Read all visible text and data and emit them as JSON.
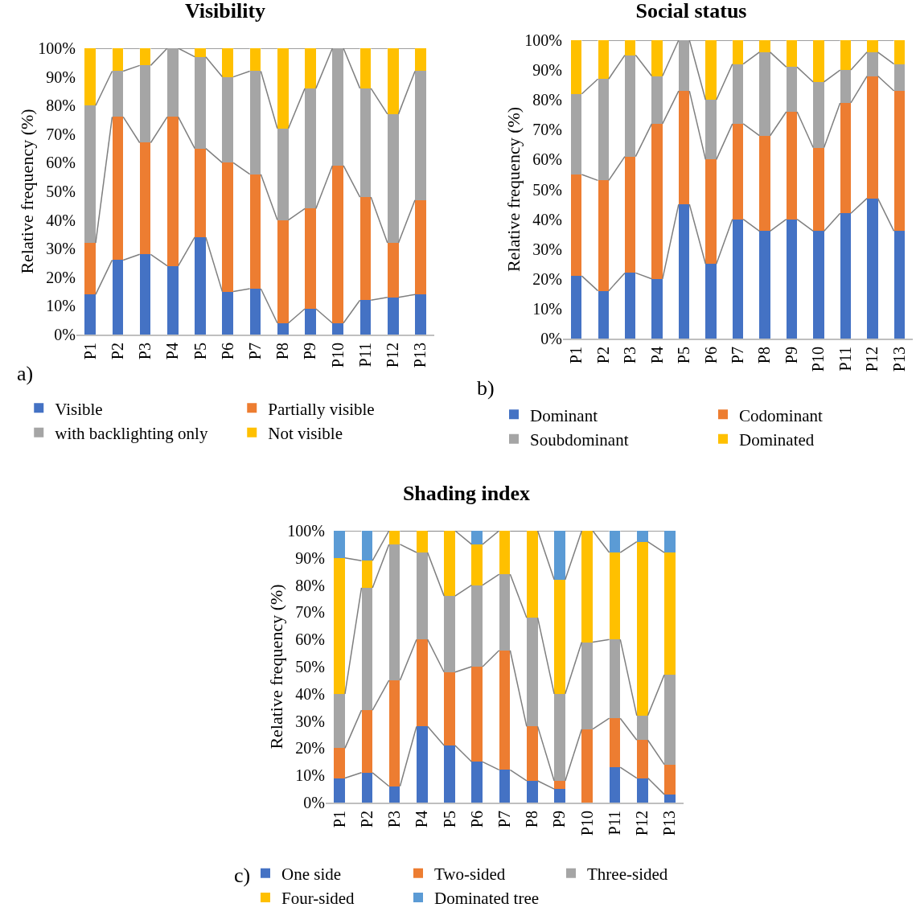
{
  "chart_data": [
    {
      "type": "bar",
      "title": "Visibility",
      "ylabel": "Relative frequency (%)",
      "categories": [
        "P1",
        "P2",
        "P3",
        "P4",
        "P5",
        "P6",
        "P7",
        "P8",
        "P9",
        "P10",
        "P11",
        "P12",
        "P13"
      ],
      "stacked": true,
      "ylim": [
        0,
        100
      ],
      "yticks": [
        {
          "value": 0,
          "label": "0%"
        },
        {
          "value": 10,
          "label": "10%"
        },
        {
          "value": 20,
          "label": "20%"
        },
        {
          "value": 30,
          "label": "30%"
        },
        {
          "value": 40,
          "label": "40%"
        },
        {
          "value": 50,
          "label": "50%"
        },
        {
          "value": 60,
          "label": "60%"
        },
        {
          "value": 70,
          "label": "70%"
        },
        {
          "value": 80,
          "label": "80%"
        },
        {
          "value": 90,
          "label": "90%"
        },
        {
          "value": 100,
          "label": "100%"
        }
      ],
      "grid": false,
      "legend": "bottom",
      "annotations": [
        "a)"
      ],
      "series": [
        {
          "name": "Visible",
          "color": "#4472c4",
          "values": [
            14,
            26,
            28,
            24,
            34,
            15,
            16,
            4,
            9,
            4,
            12,
            13,
            14
          ]
        },
        {
          "name": "Partially visible",
          "color": "#ed7d31",
          "values": [
            18,
            50,
            39,
            52,
            31,
            45,
            40,
            36,
            35,
            55,
            36,
            19,
            33
          ]
        },
        {
          "name": "with backlighting only",
          "color": "#a5a5a5",
          "values": [
            48,
            16,
            27,
            24,
            32,
            30,
            36,
            32,
            42,
            41,
            38,
            45,
            45
          ]
        },
        {
          "name": "Not visible",
          "color": "#ffc000",
          "values": [
            20,
            8,
            6,
            0,
            3,
            10,
            8,
            28,
            14,
            0,
            14,
            23,
            8
          ]
        }
      ]
    },
    {
      "type": "bar",
      "title": "Social status",
      "ylabel": "Relative frequency (%)",
      "categories": [
        "P1",
        "P2",
        "P3",
        "P4",
        "P5",
        "P6",
        "P7",
        "P8",
        "P9",
        "P10",
        "P11",
        "P12",
        "P13"
      ],
      "stacked": true,
      "ylim": [
        0,
        100
      ],
      "yticks": [
        {
          "value": 0,
          "label": "0%"
        },
        {
          "value": 10,
          "label": "10%"
        },
        {
          "value": 20,
          "label": "20%"
        },
        {
          "value": 30,
          "label": "30%"
        },
        {
          "value": 40,
          "label": "40%"
        },
        {
          "value": 50,
          "label": "50%"
        },
        {
          "value": 60,
          "label": "60%"
        },
        {
          "value": 70,
          "label": "70%"
        },
        {
          "value": 80,
          "label": "80%"
        },
        {
          "value": 90,
          "label": "90%"
        },
        {
          "value": 100,
          "label": "100%"
        }
      ],
      "grid": false,
      "legend": "bottom",
      "annotations": [
        "b)"
      ],
      "series": [
        {
          "name": "Dominant",
          "color": "#4472c4",
          "values": [
            21,
            16,
            22,
            20,
            45,
            25,
            40,
            36,
            40,
            36,
            42,
            47,
            36
          ]
        },
        {
          "name": "Codominant",
          "color": "#ed7d31",
          "values": [
            34,
            37,
            39,
            52,
            38,
            35,
            32,
            32,
            36,
            28,
            37,
            41,
            47
          ]
        },
        {
          "name": "Soubdominant",
          "color": "#a5a5a5",
          "values": [
            27,
            34,
            34,
            16,
            17,
            20,
            20,
            28,
            15,
            22,
            11,
            8,
            9
          ]
        },
        {
          "name": "Dominated",
          "color": "#ffc000",
          "values": [
            18,
            13,
            5,
            12,
            0,
            20,
            8,
            4,
            9,
            14,
            10,
            4,
            8
          ]
        }
      ]
    },
    {
      "type": "bar",
      "title": "Shading index",
      "ylabel": "Relative frequency (%)",
      "categories": [
        "P1",
        "P2",
        "P3",
        "P4",
        "P5",
        "P6",
        "P7",
        "P8",
        "P9",
        "P10",
        "P11",
        "P12",
        "P13"
      ],
      "stacked": true,
      "ylim": [
        0,
        100
      ],
      "yticks": [
        {
          "value": 0,
          "label": "0%"
        },
        {
          "value": 10,
          "label": "10%"
        },
        {
          "value": 20,
          "label": "20%"
        },
        {
          "value": 30,
          "label": "30%"
        },
        {
          "value": 40,
          "label": "40%"
        },
        {
          "value": 50,
          "label": "50%"
        },
        {
          "value": 60,
          "label": "60%"
        },
        {
          "value": 70,
          "label": "70%"
        },
        {
          "value": 80,
          "label": "80%"
        },
        {
          "value": 90,
          "label": "90%"
        },
        {
          "value": 100,
          "label": "100%"
        }
      ],
      "grid": false,
      "legend": "bottom",
      "annotations": [
        "c)"
      ],
      "series": [
        {
          "name": "One side",
          "color": "#4472c4",
          "values": [
            9,
            11,
            6,
            28,
            21,
            15,
            12,
            8,
            5,
            0,
            13,
            9,
            3
          ]
        },
        {
          "name": "Two-sided",
          "color": "#ed7d31",
          "values": [
            11,
            23,
            39,
            32,
            27,
            35,
            44,
            20,
            3,
            27,
            18,
            14,
            11
          ]
        },
        {
          "name": "Three-sided",
          "color": "#a5a5a5",
          "values": [
            20,
            45,
            50,
            32,
            28,
            30,
            28,
            40,
            32,
            32,
            29,
            9,
            33
          ]
        },
        {
          "name": "Four-sided",
          "color": "#ffc000",
          "values": [
            50,
            10,
            5,
            8,
            24,
            15,
            16,
            32,
            42,
            41,
            32,
            64,
            45
          ]
        },
        {
          "name": "Dominated tree",
          "color": "#5b9bd5",
          "values": [
            10,
            11,
            0,
            0,
            0,
            5,
            0,
            0,
            18,
            0,
            8,
            4,
            8
          ]
        }
      ]
    }
  ]
}
